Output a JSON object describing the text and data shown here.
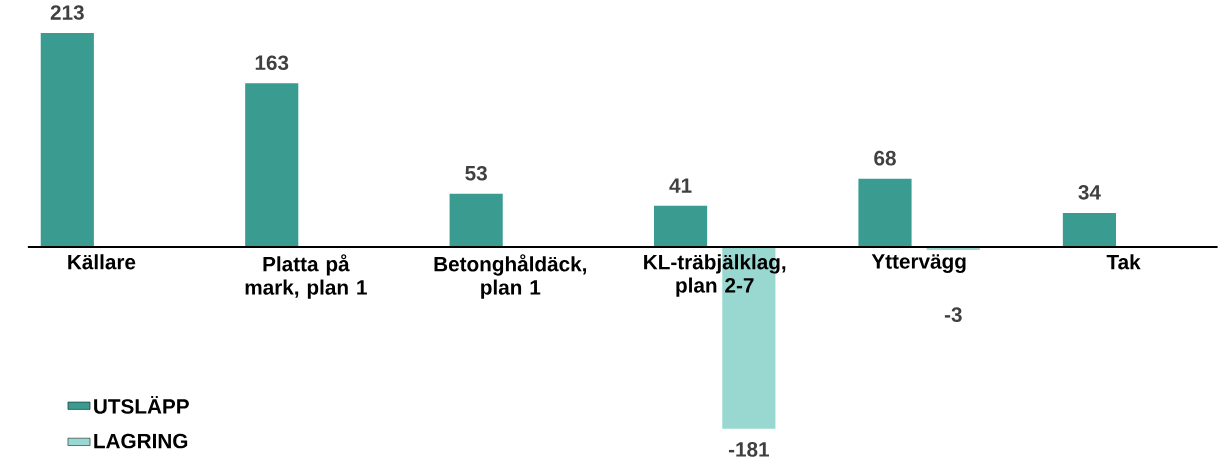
{
  "chart_data": {
    "type": "bar",
    "categories": [
      "Källare",
      "Platta på mark, plan 1",
      "Betonghåldäck, plan 1",
      "KL-träbjälklag, plan 2-7",
      "Yttervägg",
      "Tak"
    ],
    "series": [
      {
        "name": "UTSLÄPP",
        "color": "#3a9b90",
        "values": [
          213,
          163,
          53,
          41,
          68,
          34
        ]
      },
      {
        "name": "LAGRING",
        "color": "#98d8d0",
        "values": [
          null,
          null,
          null,
          -181,
          -3,
          null
        ]
      }
    ],
    "data_labels": true,
    "legend": "bottom left"
  }
}
